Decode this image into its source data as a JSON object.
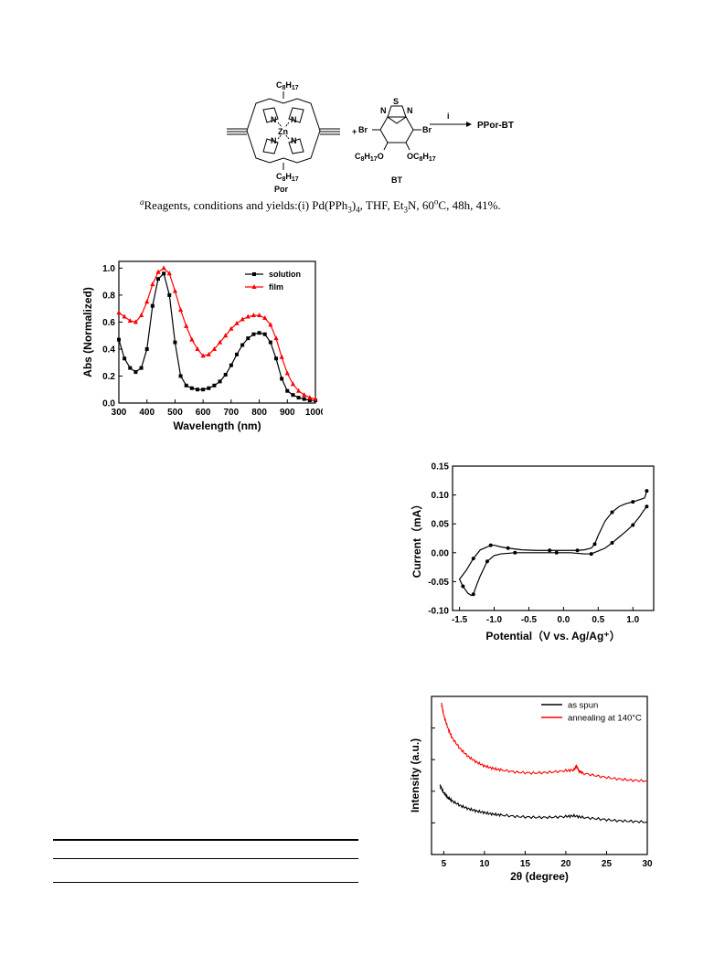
{
  "scheme": {
    "por_substituent": "C8H17",
    "por_metal": "Zn",
    "por_atom": "N",
    "por_label": "Por",
    "bt_label": "BT",
    "bt_atom_s": "S",
    "bt_atom_n": "N",
    "bt_br": "Br",
    "bt_substituent": "OC8H17",
    "bt_substituent_left": "C8H17O",
    "plus": "+",
    "arrow_label": "i",
    "product": "PPor-BT",
    "caption_prefix": "a",
    "caption": "Reagents, conditions and yields:(i) Pd(PPh3)4, THF, Et3N, 60°C, 48h, 41%."
  },
  "chart_data": [
    {
      "type": "line",
      "xlabel": "Wavelength (nm)",
      "ylabel": "Abs (Normalized)",
      "xlim": [
        300,
        1000
      ],
      "ylim": [
        0.0,
        1.05
      ],
      "xticks": [
        "300",
        "400",
        "500",
        "600",
        "700",
        "800",
        "900",
        "1000"
      ],
      "yticks": [
        "0.0",
        "0.2",
        "0.4",
        "0.6",
        "0.8",
        "1.0"
      ],
      "legend_position": "top-right",
      "series": [
        {
          "name": "solution",
          "color": "#000000",
          "marker": "square",
          "x": [
            300,
            320,
            340,
            360,
            380,
            400,
            420,
            440,
            460,
            480,
            500,
            520,
            540,
            560,
            580,
            600,
            620,
            640,
            660,
            680,
            700,
            720,
            740,
            760,
            780,
            800,
            820,
            840,
            860,
            880,
            900,
            920,
            940,
            960,
            980,
            1000
          ],
          "y": [
            0.47,
            0.33,
            0.26,
            0.23,
            0.26,
            0.4,
            0.72,
            0.92,
            0.96,
            0.8,
            0.45,
            0.2,
            0.13,
            0.11,
            0.1,
            0.1,
            0.11,
            0.13,
            0.16,
            0.21,
            0.28,
            0.36,
            0.43,
            0.48,
            0.51,
            0.52,
            0.51,
            0.45,
            0.33,
            0.18,
            0.09,
            0.06,
            0.04,
            0.03,
            0.02,
            0.02
          ]
        },
        {
          "name": "film",
          "color": "#ff0000",
          "marker": "triangle",
          "x": [
            300,
            320,
            340,
            360,
            380,
            400,
            420,
            440,
            460,
            480,
            500,
            520,
            540,
            560,
            580,
            600,
            620,
            640,
            660,
            680,
            700,
            720,
            740,
            760,
            780,
            800,
            820,
            840,
            860,
            880,
            900,
            920,
            940,
            960,
            980,
            1000
          ],
          "y": [
            0.67,
            0.64,
            0.61,
            0.6,
            0.65,
            0.75,
            0.88,
            0.97,
            1.0,
            0.96,
            0.83,
            0.69,
            0.57,
            0.47,
            0.4,
            0.35,
            0.36,
            0.4,
            0.45,
            0.5,
            0.55,
            0.59,
            0.62,
            0.64,
            0.65,
            0.65,
            0.63,
            0.58,
            0.48,
            0.34,
            0.22,
            0.14,
            0.09,
            0.06,
            0.04,
            0.03
          ]
        }
      ]
    },
    {
      "type": "line",
      "xlabel": "Potential（V vs. Ag/Ag⁺）",
      "ylabel": "Current（mA）",
      "xlim": [
        -1.6,
        1.3
      ],
      "ylim": [
        -0.1,
        0.15
      ],
      "xticks": [
        "-1.5",
        "-1.0",
        "-0.5",
        "0.0",
        "0.5",
        "1.0"
      ],
      "yticks": [
        "-0.10",
        "-0.05",
        "0.00",
        "0.05",
        "0.10",
        "0.15"
      ],
      "series": [
        {
          "name": "",
          "color": "#000000",
          "marker": "circle",
          "x": [
            1.2,
            1.17,
            1.1,
            1.0,
            0.9,
            0.8,
            0.7,
            0.6,
            0.5,
            0.45,
            0.4,
            0.3,
            0.2,
            0.1,
            0.0,
            -0.2,
            -0.4,
            -0.6,
            -0.8,
            -0.9,
            -1.0,
            -1.05,
            -1.1,
            -1.2,
            -1.3,
            -1.4,
            -1.5,
            -1.45,
            -1.38,
            -1.33,
            -1.3,
            -1.25,
            -1.2,
            -1.1,
            -1.0,
            -0.9,
            -0.7,
            -0.5,
            -0.3,
            -0.1,
            0.1,
            0.3,
            0.4,
            0.5,
            0.6,
            0.7,
            0.8,
            0.9,
            1.0,
            1.1,
            1.15,
            1.2
          ],
          "y": [
            0.107,
            0.095,
            0.092,
            0.088,
            0.085,
            0.08,
            0.07,
            0.055,
            0.03,
            0.015,
            0.008,
            0.005,
            0.004,
            0.004,
            0.004,
            0.004,
            0.004,
            0.005,
            0.008,
            0.01,
            0.013,
            0.013,
            0.01,
            0.005,
            -0.01,
            -0.03,
            -0.046,
            -0.058,
            -0.07,
            -0.074,
            -0.072,
            -0.055,
            -0.04,
            -0.015,
            -0.005,
            -0.002,
            0.0,
            0.0,
            0.0,
            0.0,
            0.0,
            -0.002,
            -0.002,
            0.003,
            0.008,
            0.017,
            0.027,
            0.037,
            0.048,
            0.063,
            0.072,
            0.08
          ]
        }
      ]
    },
    {
      "type": "line",
      "xlabel": "2θ (degree)",
      "ylabel": "Intensity (a.u.)",
      "xlim": [
        3.5,
        30
      ],
      "xticks": [
        "5",
        "10",
        "15",
        "20",
        "25",
        "30"
      ],
      "legend_position": "top-right",
      "series": [
        {
          "name": "as spun",
          "color": "#000000",
          "x": [
            4.5,
            5,
            5.5,
            6,
            7,
            8,
            9,
            10,
            11,
            12,
            14,
            16,
            18,
            20,
            21,
            22,
            24,
            26,
            28,
            30
          ],
          "y": [
            0.44,
            0.39,
            0.36,
            0.34,
            0.31,
            0.29,
            0.275,
            0.265,
            0.255,
            0.25,
            0.24,
            0.235,
            0.235,
            0.24,
            0.245,
            0.235,
            0.225,
            0.215,
            0.21,
            0.205
          ]
        },
        {
          "name": "annealing at 140°C",
          "color": "#ff0000",
          "x": [
            4.7,
            5,
            5.5,
            6,
            7,
            8,
            9,
            10,
            11,
            12,
            14,
            16,
            18,
            20,
            21,
            21.3,
            21.6,
            22,
            24,
            26,
            28,
            30
          ],
          "y": [
            0.96,
            0.88,
            0.8,
            0.74,
            0.67,
            0.62,
            0.585,
            0.56,
            0.545,
            0.535,
            0.52,
            0.515,
            0.52,
            0.53,
            0.535,
            0.56,
            0.53,
            0.515,
            0.495,
            0.48,
            0.47,
            0.465
          ]
        }
      ]
    }
  ]
}
